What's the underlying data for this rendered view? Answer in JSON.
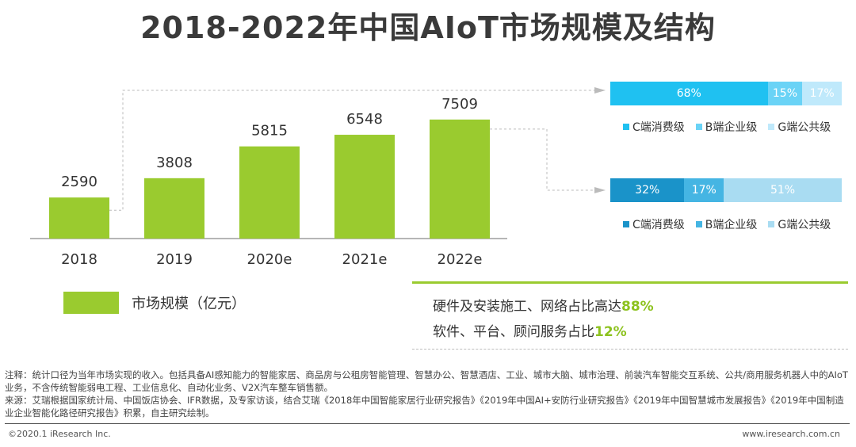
{
  "title": "2018-2022年中国AIoT市场规模及结构",
  "chart_data": {
    "type": "bar",
    "categories": [
      "2018",
      "2019",
      "2020e",
      "2021e",
      "2022e"
    ],
    "values": [
      2590,
      3808,
      5815,
      6548,
      7509
    ],
    "ylim": [
      0,
      8500
    ],
    "legend": "市场规模（亿元）",
    "bar_color": "#9acb2f"
  },
  "structure_charts": [
    {
      "segments": [
        {
          "value": 68,
          "label": "68%",
          "color": "#1fc1f1"
        },
        {
          "value": 15,
          "label": "15%",
          "color": "#6ad3f6"
        },
        {
          "value": 17,
          "label": "17%",
          "color": "#bfe9fb"
        }
      ],
      "legend": [
        {
          "label": "C端消费级",
          "color": "#1fc1f1"
        },
        {
          "label": "B端企业级",
          "color": "#6ad3f6"
        },
        {
          "label": "G端公共级",
          "color": "#bfe9fb"
        }
      ]
    },
    {
      "segments": [
        {
          "value": 32,
          "label": "32%",
          "color": "#1a93c9"
        },
        {
          "value": 17,
          "label": "17%",
          "color": "#45b5e3"
        },
        {
          "value": 51,
          "label": "51%",
          "color": "#a9dcf2"
        }
      ],
      "legend": [
        {
          "label": "C端消费级",
          "color": "#1a93c9"
        },
        {
          "label": "B端企业级",
          "color": "#45b5e3"
        },
        {
          "label": "G端公共级",
          "color": "#a9dcf2"
        }
      ]
    }
  ],
  "summary": {
    "line1_text": "硬件及安装施工、网络占比高达",
    "line1_value": "88%",
    "line2_text": "软件、平台、顾问服务占比",
    "line2_value": "12%"
  },
  "notes": {
    "line1": "注释：统计口径为当年市场实现的收入。包括具备AI感知能力的智能家居、商品房与公租房智能管理、智慧办公、智慧酒店、工业、城市大脑、城市治理、前装汽车智能交互系统、公共/商用服务机器人中的AIoT业务，不含传统智能弱电工程、工业信息化、自动化业务、V2X汽车整车销售额。",
    "line2": "来源：艾瑞根据国家统计局、中国饭店协会、IFR数据，及专家访谈，结合艾瑞《2018年中国智能家居行业研究报告》《2019年中国AI+安防行业研究报告》《2019年中国智慧城市发展报告》《2019年中国制造业企业智能化路径研究报告》积累，自主研究绘制。"
  },
  "footer": {
    "copyright": "©2020.1 iResearch Inc.",
    "site": "www.iresearch.com.cn"
  }
}
